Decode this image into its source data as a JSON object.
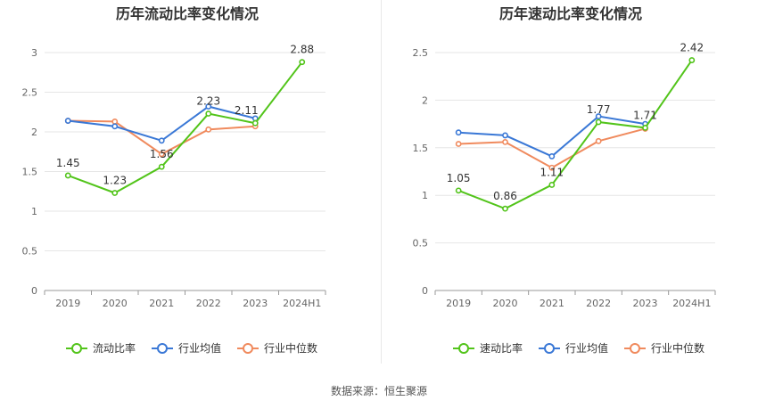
{
  "source": "数据来源：恒生聚源",
  "colors": {
    "company": "#52c41a",
    "industry_avg": "#3a78d6",
    "industry_median": "#f08a5d"
  },
  "chart_data": [
    {
      "type": "line",
      "title": "历年流动比率变化情况",
      "x": [
        "2019",
        "2020",
        "2021",
        "2022",
        "2023",
        "2024H1"
      ],
      "ylim": [
        0,
        3
      ],
      "yticks": [
        "0",
        "0.5",
        "1",
        "1.5",
        "2",
        "2.5",
        "3"
      ],
      "ytick_values": [
        0,
        0.5,
        1,
        1.5,
        2,
        2.5,
        3
      ],
      "grid": true,
      "legend": "bottom",
      "series": [
        {
          "name": "流动比率",
          "values": [
            1.45,
            1.23,
            1.56,
            2.23,
            2.11,
            2.88
          ],
          "labels": [
            "1.45",
            "1.23",
            "1.56",
            "2.23",
            "2.11",
            "2.88"
          ]
        },
        {
          "name": "行业均值",
          "values": [
            2.14,
            2.07,
            1.89,
            2.32,
            2.17,
            null
          ]
        },
        {
          "name": "行业中位数",
          "values": [
            2.14,
            2.13,
            1.72,
            2.03,
            2.07,
            null
          ]
        }
      ]
    },
    {
      "type": "line",
      "title": "历年速动比率变化情况",
      "x": [
        "2019",
        "2020",
        "2021",
        "2022",
        "2023",
        "2024H1"
      ],
      "ylim": [
        0,
        2.5
      ],
      "yticks": [
        "0",
        "0.5",
        "1",
        "1.5",
        "2",
        "2.5"
      ],
      "ytick_values": [
        0,
        0.5,
        1,
        1.5,
        2,
        2.5
      ],
      "grid": true,
      "legend": "bottom",
      "series": [
        {
          "name": "速动比率",
          "values": [
            1.05,
            0.86,
            1.11,
            1.77,
            1.71,
            2.42
          ],
          "labels": [
            "1.05",
            "0.86",
            "1.11",
            "1.77",
            "1.71",
            "2.42"
          ]
        },
        {
          "name": "行业均值",
          "values": [
            1.66,
            1.63,
            1.41,
            1.83,
            1.75,
            null
          ]
        },
        {
          "name": "行业中位数",
          "values": [
            1.54,
            1.56,
            1.29,
            1.57,
            1.7,
            null
          ]
        }
      ]
    }
  ]
}
